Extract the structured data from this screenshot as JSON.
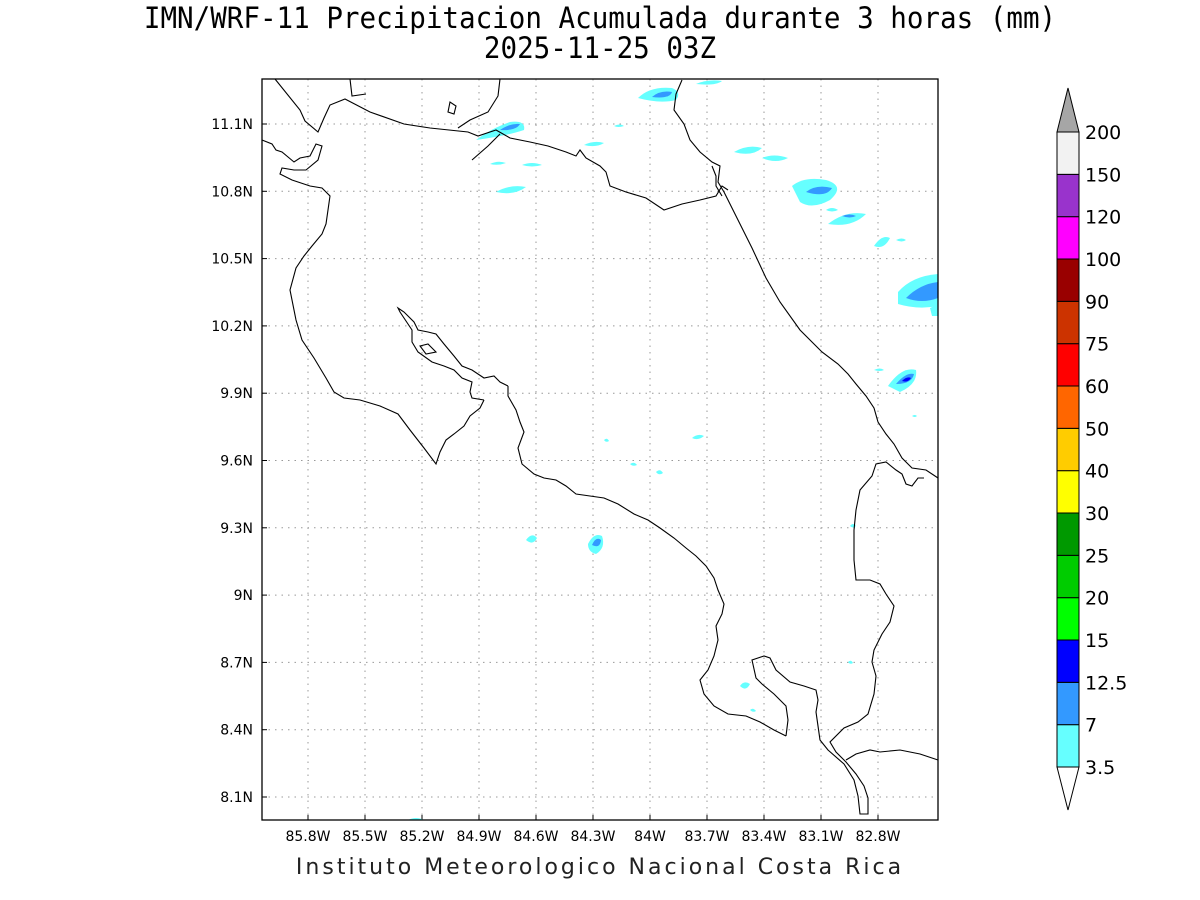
{
  "header": {
    "title": "IMN/WRF-11 Precipitacion Acumulada durante 3 horas (mm)",
    "valid_time": "2025-11-25 03Z"
  },
  "footer": {
    "credit": "Instituto Meteorologico Nacional Costa Rica"
  },
  "axes": {
    "lon_labels": [
      "85.8W",
      "85.5W",
      "85.2W",
      "84.9W",
      "84.6W",
      "84.3W",
      "84W",
      "83.7W",
      "83.4W",
      "83.1W",
      "82.8W"
    ],
    "lat_labels": [
      "11.1N",
      "10.8N",
      "10.5N",
      "10.2N",
      "9.9N",
      "9.6N",
      "9.3N",
      "9N",
      "8.7N",
      "8.4N",
      "8.1N"
    ],
    "grid": true
  },
  "colorbar": {
    "unit": "mm",
    "levels": [
      "3.5",
      "7",
      "12.5",
      "15",
      "20",
      "25",
      "30",
      "40",
      "50",
      "60",
      "75",
      "90",
      "100",
      "120",
      "150",
      "200"
    ],
    "colors": [
      "#66ffff",
      "#3399ff",
      "#0000ff",
      "#00ff00",
      "#00cc00",
      "#009900",
      "#ffff00",
      "#ffcc00",
      "#ff6600",
      "#ff0000",
      "#cc3300",
      "#990000",
      "#ff00ff",
      "#9933cc",
      "#f2f2f2",
      "#a6a6a6"
    ]
  },
  "precip_colors": {
    "light": "#66ffff",
    "moderate": "#3399ff",
    "heavy": "#0000ff"
  }
}
